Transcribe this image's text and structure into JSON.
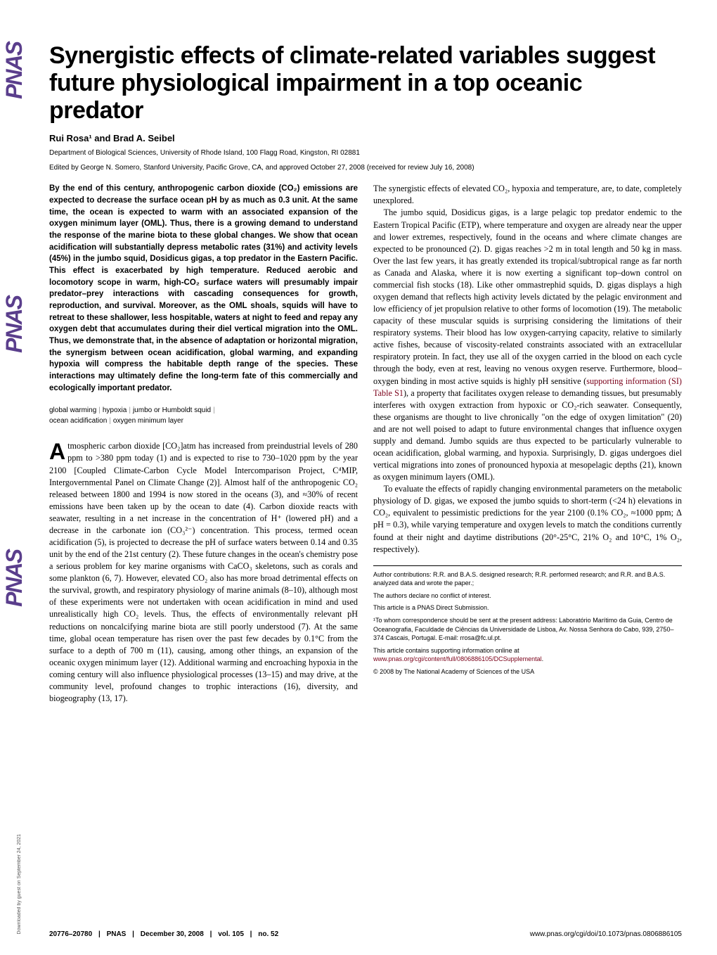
{
  "sidebar": {
    "logo": "PNAS",
    "download": "Downloaded by guest on September 24, 2021"
  },
  "title": "Synergistic effects of climate-related variables suggest future physiological impairment in a top oceanic predator",
  "authors": "Rui Rosa¹ and Brad A. Seibel",
  "affiliation": "Department of Biological Sciences, University of Rhode Island, 100 Flagg Road, Kingston, RI 02881",
  "edited": "Edited by George N. Somero, Stanford University, Pacific Grove, CA, and approved October 27, 2008 (received for review July 16, 2008)",
  "abstract": "By the end of this century, anthropogenic carbon dioxide (CO₂) emissions are expected to decrease the surface ocean pH by as much as 0.3 unit. At the same time, the ocean is expected to warm with an associated expansion of the oxygen minimum layer (OML). Thus, there is a growing demand to understand the response of the marine biota to these global changes. We show that ocean acidification will substantially depress metabolic rates (31%) and activity levels (45%) in the jumbo squid, Dosidicus gigas, a top predator in the Eastern Pacific. This effect is exacerbated by high temperature. Reduced aerobic and locomotory scope in warm, high-CO₂ surface waters will presumably impair predator–prey interactions with cascading consequences for growth, reproduction, and survival. Moreover, as the OML shoals, squids will have to retreat to these shallower, less hospitable, waters at night to feed and repay any oxygen debt that accumulates during their diel vertical migration into the OML. Thus, we demonstrate that, in the absence of adaptation or horizontal migration, the synergism between ocean acidification, global warming, and expanding hypoxia will compress the habitable depth range of the species. These interactions may ultimately define the long-term fate of this commercially and ecologically important predator.",
  "keywords": {
    "k1": "global warming",
    "k2": "hypoxia",
    "k3": "jumbo or Humboldt squid",
    "k4": "ocean acidification",
    "k5": "oxygen minimum layer"
  },
  "body_left": "tmospheric carbon dioxide [CO₂]atm has increased from preindustrial levels of 280 ppm to >380 ppm today (1) and is expected to rise to 730–1020 ppm by the year 2100 [Coupled Climate-Carbon Cycle Model Intercomparison Project, C⁴MIP, Intergovernmental Panel on Climate Change (2)]. Almost half of the anthropogenic CO₂ released between 1800 and 1994 is now stored in the oceans (3), and ≈30% of recent emissions have been taken up by the ocean to date (4). Carbon dioxide reacts with seawater, resulting in a net increase in the concentration of H⁺ (lowered pH) and a decrease in the carbonate ion (CO₃²⁻) concentration. This process, termed ocean acidification (5), is projected to decrease the pH of surface waters between 0.14 and 0.35 unit by the end of the 21st century (2). These future changes in the ocean's chemistry pose a serious problem for key marine organisms with CaCO₃ skeletons, such as corals and some plankton (6, 7). However, elevated CO₂ also has more broad detrimental effects on the survival, growth, and respiratory physiology of marine animals (8–10), although most of these experiments were not undertaken with ocean acidification in mind and used unrealistically high CO₂ levels. Thus, the effects of environmentally relevant pH reductions on noncalcifying marine biota are still poorly understood (7). At the same time, global ocean temperature has risen over the past few decades by 0.1°C from the surface to a depth of 700 m (11), causing, among other things, an expansion of the oceanic oxygen minimum layer (12). Additional warming and encroaching hypoxia in the coming century will also influence physiological processes (13–15) and may drive, at the community level, profound changes to trophic interactions (16), diversity, and biogeography (13, 17).",
  "body_right_p1": "The synergistic effects of elevated CO₂, hypoxia and temperature, are, to date, completely unexplored.",
  "body_right_p2": "The jumbo squid, Dosidicus gigas, is a large pelagic top predator endemic to the Eastern Tropical Pacific (ETP), where temperature and oxygen are already near the upper and lower extremes, respectively, found in the oceans and where climate changes are expected to be pronounced (2). D. gigas reaches >2 m in total length and 50 kg in mass. Over the last few years, it has greatly extended its tropical/subtropical range as far north as Canada and Alaska, where it is now exerting a significant top–down control on commercial fish stocks (18). Like other ommastrephid squids, D. gigas displays a high oxygen demand that reflects high activity levels dictated by the pelagic environment and low efficiency of jet propulsion relative to other forms of locomotion (19). The metabolic capacity of these muscular squids is surprising considering the limitations of their respiratory systems. Their blood has low oxygen-carrying capacity, relative to similarly active fishes, because of viscosity-related constraints associated with an extracellular respiratory protein. In fact, they use all of the oxygen carried in the blood on each cycle through the body, even at rest, leaving no venous oxygen reserve. Furthermore, blood–oxygen binding in most active squids is highly pH sensitive (",
  "body_right_link1": "supporting information (SI) Table S1",
  "body_right_p2b": "), a property that facilitates oxygen release to demanding tissues, but presumably interferes with oxygen extraction from hypoxic or CO₂-rich seawater. Consequently, these organisms are thought to live chronically \"on the edge of oxygen limitation\" (20) and are not well poised to adapt to future environmental changes that influence oxygen supply and demand. Jumbo squids are thus expected to be particularly vulnerable to ocean acidification, global warming, and hypoxia. Surprisingly, D. gigas undergoes diel vertical migrations into zones of pronounced hypoxia at mesopelagic depths (21), known as oxygen minimum layers (OML).",
  "body_right_p3": "To evaluate the effects of rapidly changing environmental parameters on the metabolic physiology of D. gigas, we exposed the jumbo squids to short-term (<24 h) elevations in CO₂, equivalent to pessimistic predictions for the year 2100 (0.1% CO₂, ≈1000 ppm; Δ pH = 0.3), while varying temperature and oxygen levels to match the conditions currently found at their night and daytime distributions (20°-25°C, 21% O₂ and 10°C, 1% O₂, respectively).",
  "footnotes": {
    "n1": "Author contributions: R.R. and B.A.S. designed research; R.R. performed research; and R.R. and B.A.S. analyzed data and wrote the paper.;",
    "n2": "The authors declare no conflict of interest.",
    "n3": "This article is a PNAS Direct Submission.",
    "n4": "¹To whom correspondence should be sent at the present address: Laboratório Marítimo da Guia, Centro de Oceanografia, Faculdade de Ciências da Universidade de Lisboa, Av. Nossa Senhora do Cabo, 939, 2750–374 Cascais, Portugal. E-mail: rrosa@fc.ul.pt.",
    "n5a": "This article contains supporting information online at ",
    "n5link": "www.pnas.org/cgi/content/full/0806886105/DCSupplemental",
    "n5b": ".",
    "n6": "© 2008 by The National Academy of Sciences of the USA"
  },
  "footer": {
    "pages": "20776–20780",
    "journal": "PNAS",
    "date": "December 30, 2008",
    "vol": "vol. 105",
    "no": "no. 52",
    "url": "www.pnas.org/cgi/doi/10.1073/pnas.0806886105"
  }
}
